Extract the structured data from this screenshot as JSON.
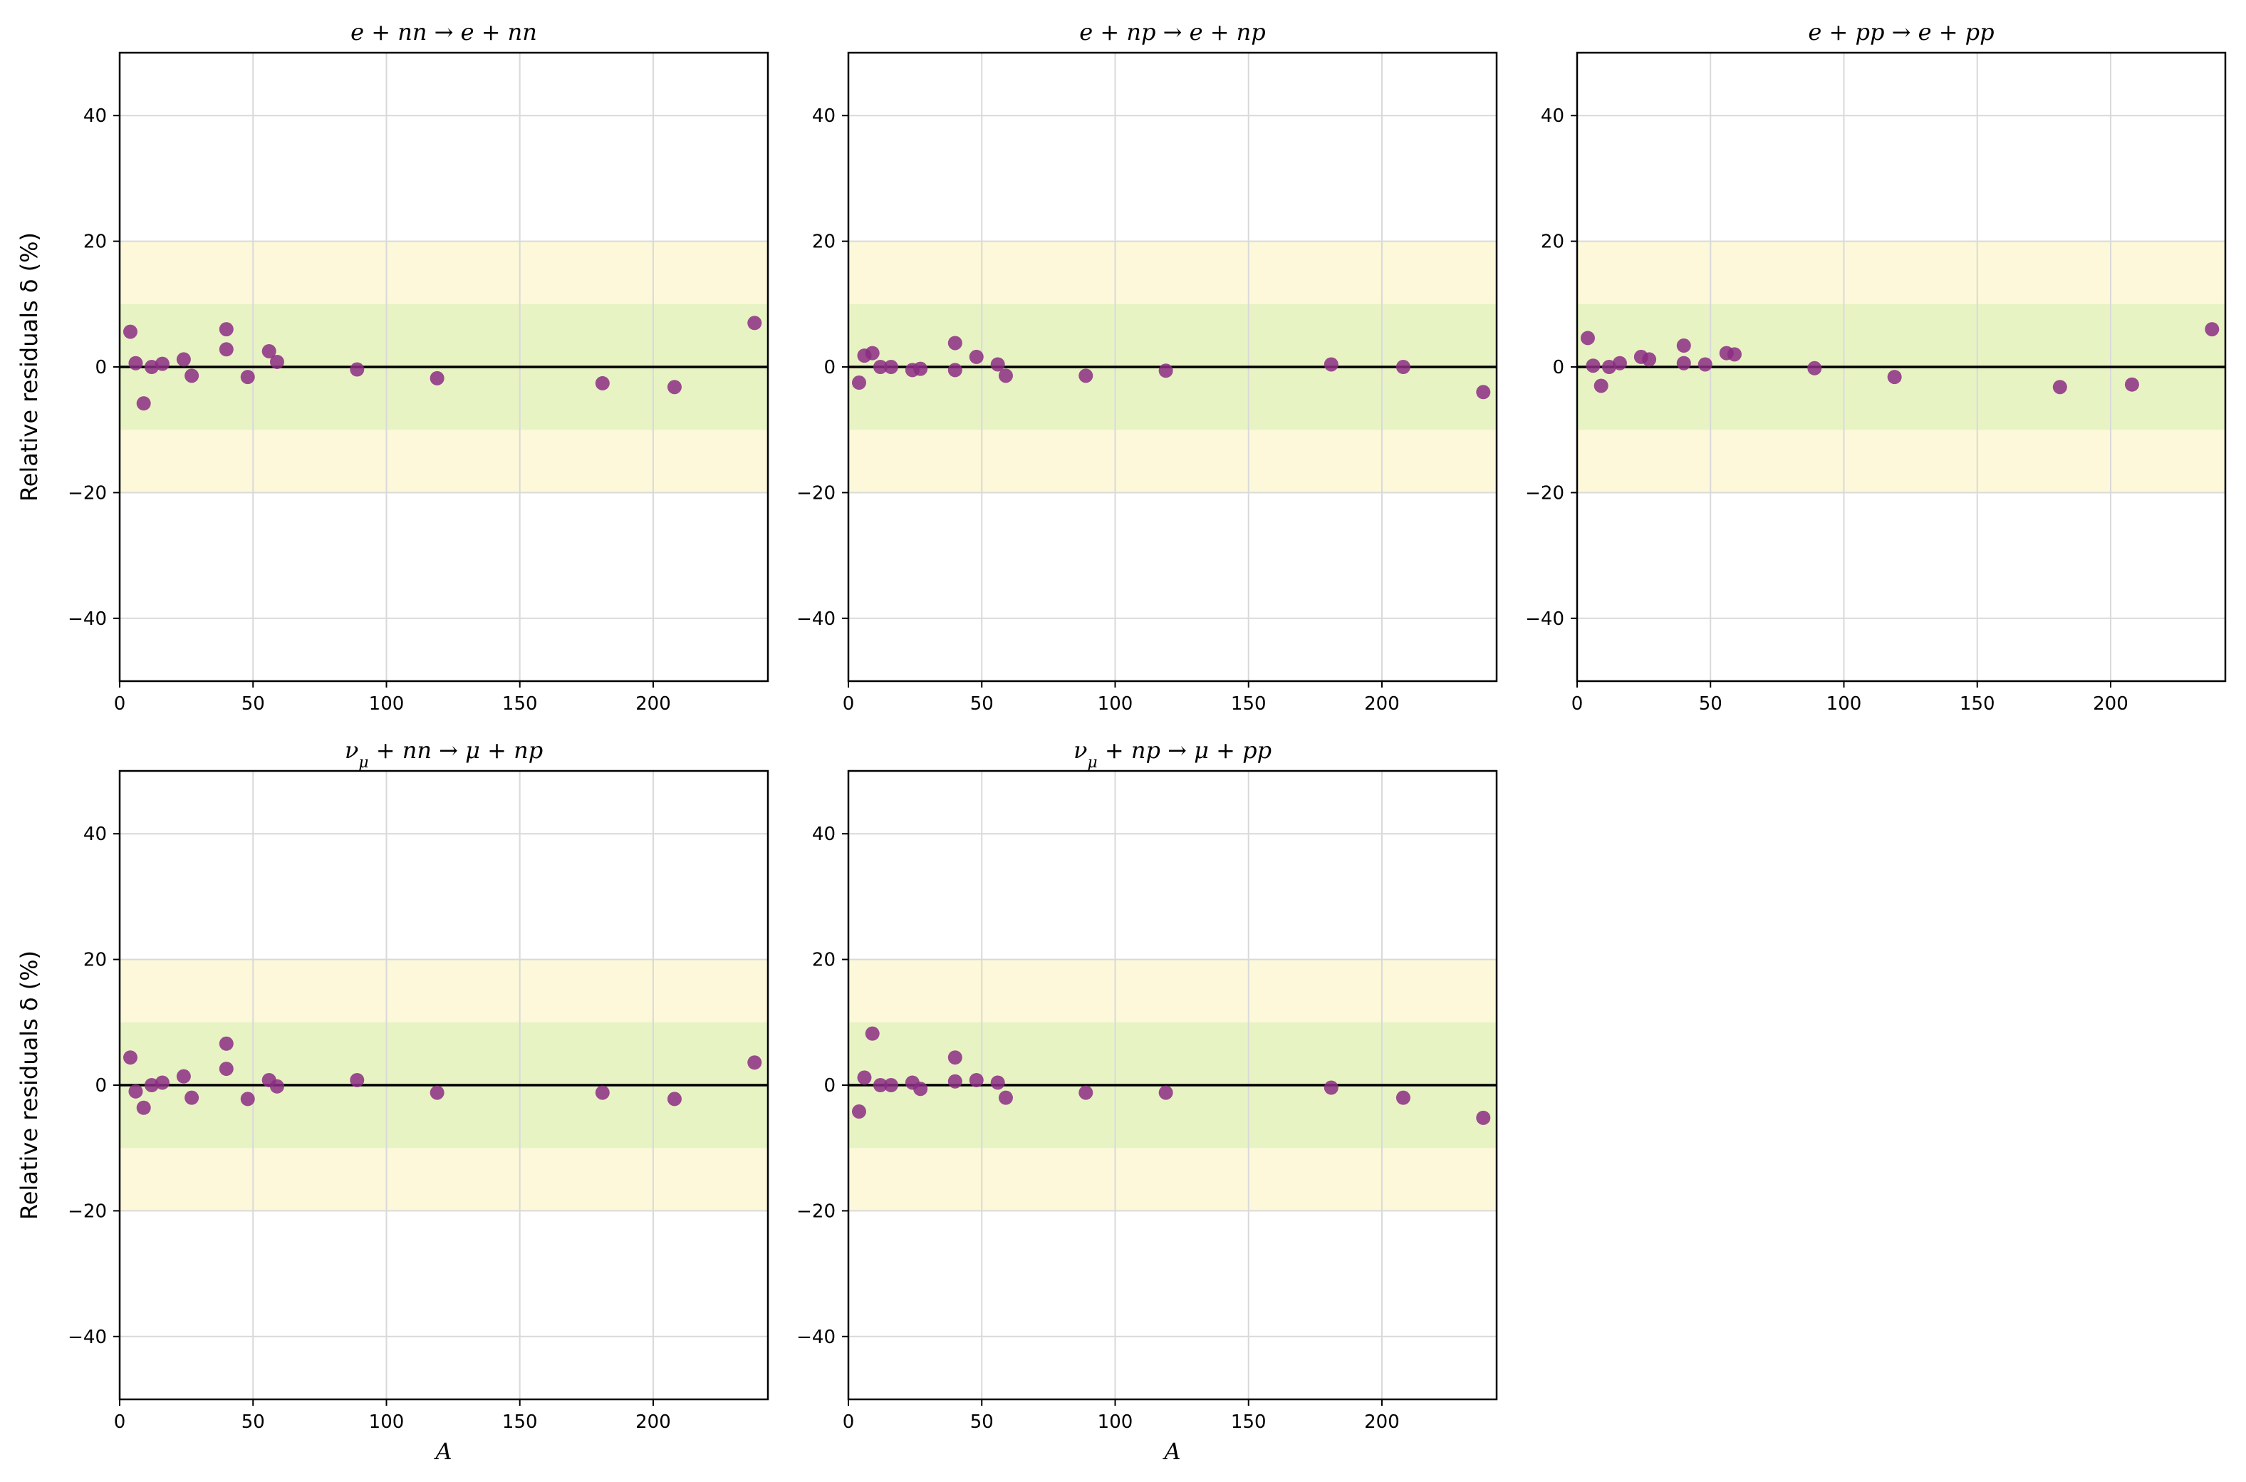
{
  "figure": {
    "ylabel": "Relative residuals δ  (%)",
    "xlabel": "A",
    "colors": {
      "point": "#8b2d84",
      "band_inner": "#e8f3c4",
      "band_outer": "#fcf8d9",
      "grid": "#d9d9d9",
      "zero_line": "#000000"
    }
  },
  "chart_data": [
    {
      "type": "scatter",
      "title": "e + nn → e + nn",
      "xlim": [
        0,
        243
      ],
      "ylim": [
        -50,
        50
      ],
      "xticks": [
        0,
        50,
        100,
        150,
        200
      ],
      "yticks": [
        -40,
        -20,
        0,
        20,
        40
      ],
      "bands": [
        {
          "from": -20,
          "to": 20,
          "role": "outer"
        },
        {
          "from": -10,
          "to": 10,
          "role": "inner"
        }
      ],
      "grid": true,
      "x": [
        4,
        6,
        9,
        12,
        16,
        24,
        27,
        40,
        40,
        48,
        56,
        59,
        89,
        119,
        181,
        208,
        238
      ],
      "y": [
        5.6,
        0.6,
        -5.8,
        0.0,
        0.5,
        1.2,
        -1.4,
        2.8,
        6.0,
        -1.6,
        2.5,
        0.8,
        -0.4,
        -1.8,
        -2.6,
        -3.2,
        7.0
      ]
    },
    {
      "type": "scatter",
      "title": "e + np → e + np",
      "xlim": [
        0,
        243
      ],
      "ylim": [
        -50,
        50
      ],
      "xticks": [
        0,
        50,
        100,
        150,
        200
      ],
      "yticks": [
        -40,
        -20,
        0,
        20,
        40
      ],
      "bands": [
        {
          "from": -20,
          "to": 20,
          "role": "outer"
        },
        {
          "from": -10,
          "to": 10,
          "role": "inner"
        }
      ],
      "grid": true,
      "x": [
        4,
        6,
        9,
        12,
        16,
        24,
        27,
        40,
        40,
        48,
        56,
        59,
        89,
        119,
        181,
        208,
        238
      ],
      "y": [
        -2.5,
        1.8,
        2.2,
        0.0,
        0.0,
        -0.5,
        -0.3,
        3.8,
        -0.5,
        1.6,
        0.4,
        -1.4,
        -1.4,
        -0.6,
        0.4,
        0.0,
        -4.0
      ]
    },
    {
      "type": "scatter",
      "title": "e + pp → e + pp",
      "xlim": [
        0,
        243
      ],
      "ylim": [
        -50,
        50
      ],
      "xticks": [
        0,
        50,
        100,
        150,
        200
      ],
      "yticks": [
        -40,
        -20,
        0,
        20,
        40
      ],
      "bands": [
        {
          "from": -20,
          "to": 20,
          "role": "outer"
        },
        {
          "from": -10,
          "to": 10,
          "role": "inner"
        }
      ],
      "grid": true,
      "x": [
        4,
        6,
        9,
        12,
        16,
        24,
        27,
        40,
        40,
        48,
        56,
        59,
        89,
        119,
        181,
        208,
        238
      ],
      "y": [
        4.6,
        0.2,
        -3.0,
        0.0,
        0.6,
        1.6,
        1.2,
        3.4,
        0.6,
        0.4,
        2.2,
        2.0,
        -0.2,
        -1.6,
        -3.2,
        -2.8,
        6.0
      ]
    },
    {
      "type": "scatter",
      "title": "ν_μ + nn → μ + np",
      "xlim": [
        0,
        243
      ],
      "ylim": [
        -50,
        50
      ],
      "xticks": [
        0,
        50,
        100,
        150,
        200
      ],
      "yticks": [
        -40,
        -20,
        0,
        20,
        40
      ],
      "bands": [
        {
          "from": -20,
          "to": 20,
          "role": "outer"
        },
        {
          "from": -10,
          "to": 10,
          "role": "inner"
        }
      ],
      "grid": true,
      "x": [
        4,
        6,
        9,
        12,
        16,
        24,
        27,
        40,
        40,
        48,
        56,
        59,
        89,
        119,
        181,
        208,
        238
      ],
      "y": [
        4.4,
        -1.0,
        -3.6,
        0.0,
        0.4,
        1.4,
        -2.0,
        2.6,
        6.6,
        -2.2,
        0.8,
        -0.2,
        0.8,
        -1.2,
        -1.2,
        -2.2,
        3.6
      ]
    },
    {
      "type": "scatter",
      "title": "ν_μ + np → μ + pp",
      "xlim": [
        0,
        243
      ],
      "ylim": [
        -50,
        50
      ],
      "xticks": [
        0,
        50,
        100,
        150,
        200
      ],
      "yticks": [
        -40,
        -20,
        0,
        20,
        40
      ],
      "bands": [
        {
          "from": -20,
          "to": 20,
          "role": "outer"
        },
        {
          "from": -10,
          "to": 10,
          "role": "inner"
        }
      ],
      "grid": true,
      "x": [
        4,
        6,
        9,
        12,
        16,
        24,
        27,
        40,
        40,
        48,
        56,
        59,
        89,
        119,
        181,
        208,
        238
      ],
      "y": [
        -4.2,
        1.2,
        8.2,
        0.0,
        0.0,
        0.4,
        -0.6,
        4.4,
        0.6,
        0.8,
        0.4,
        -2.0,
        -1.2,
        -1.2,
        -0.4,
        -2.0,
        -5.2
      ]
    }
  ]
}
